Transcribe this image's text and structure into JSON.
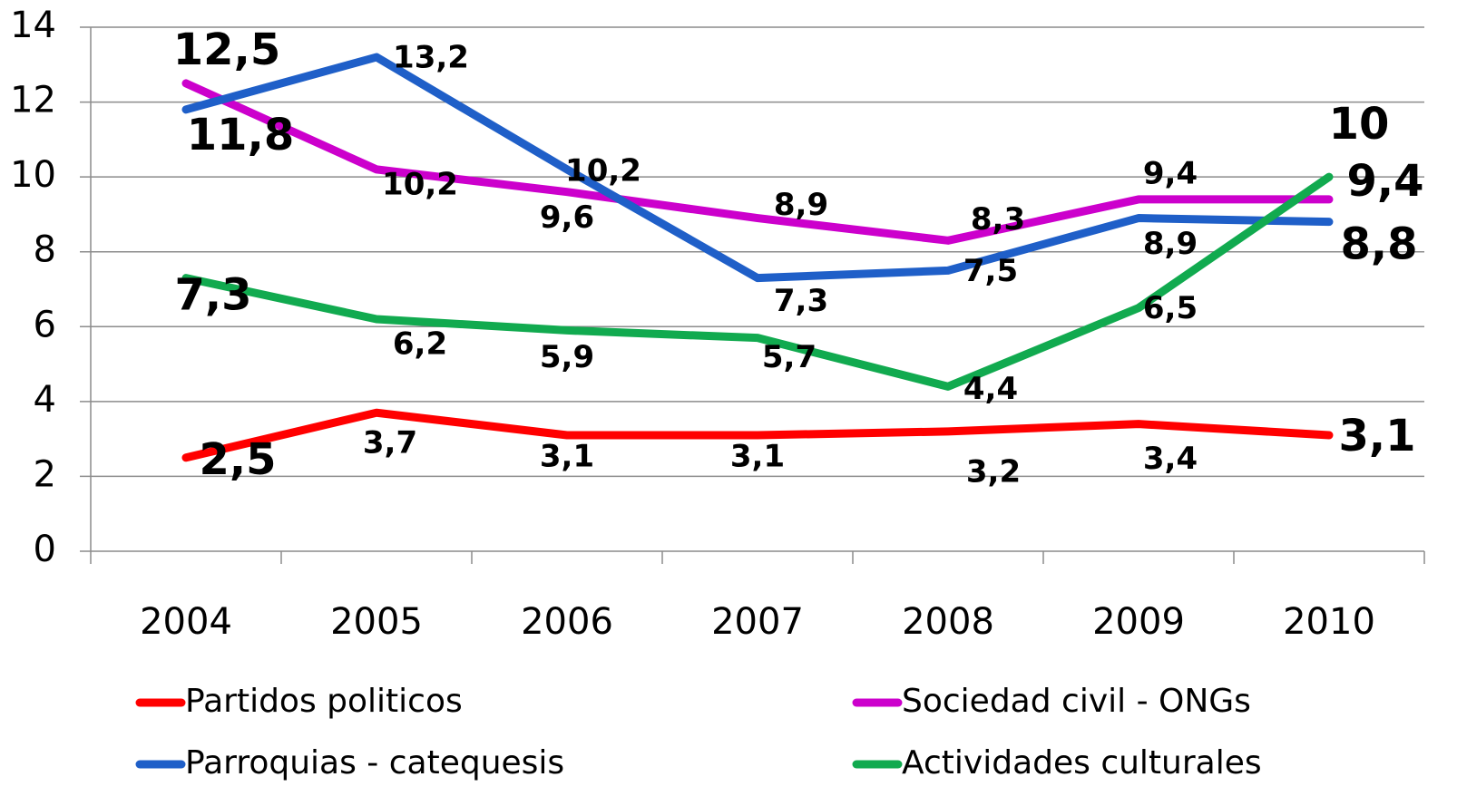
{
  "chart_data": {
    "type": "line",
    "categories": [
      "2004",
      "2005",
      "2006",
      "2007",
      "2008",
      "2009",
      "2010"
    ],
    "series": [
      {
        "name": "Partidos politicos",
        "color": "#ff0000",
        "values": [
          2.5,
          3.7,
          3.1,
          3.1,
          3.2,
          3.4,
          3.1
        ],
        "value_labels": [
          "2,5",
          "3,7",
          "3,1",
          "3,1",
          "3,2",
          "3,4",
          "3,1"
        ]
      },
      {
        "name": "Sociedad civil - ONGs",
        "color": "#cc00cc",
        "values": [
          12.5,
          10.2,
          9.6,
          8.9,
          8.3,
          9.4,
          9.4
        ],
        "value_labels": [
          "12,5",
          "10,2",
          "9,6",
          "8,9",
          "8,3",
          "9,4",
          "9,4"
        ]
      },
      {
        "name": "Parroquias - catequesis",
        "color": "#1f5fc8",
        "values": [
          11.8,
          13.2,
          10.2,
          7.3,
          7.5,
          8.9,
          8.8
        ],
        "value_labels": [
          "11,8",
          "13,2",
          "10,2",
          "7,3",
          "7,5",
          "8,9",
          "8,8"
        ]
      },
      {
        "name": "Actividades culturales",
        "color": "#11aa4f",
        "values": [
          7.3,
          6.2,
          5.9,
          5.7,
          4.4,
          6.5,
          10
        ],
        "value_labels": [
          "7,3",
          "6,2",
          "5,9",
          "5,7",
          "4,4",
          "6,5",
          "10"
        ]
      }
    ],
    "ylim": [
      0,
      14
    ],
    "yticks": [
      0,
      2,
      4,
      6,
      8,
      10,
      12,
      14
    ],
    "grid": true
  }
}
